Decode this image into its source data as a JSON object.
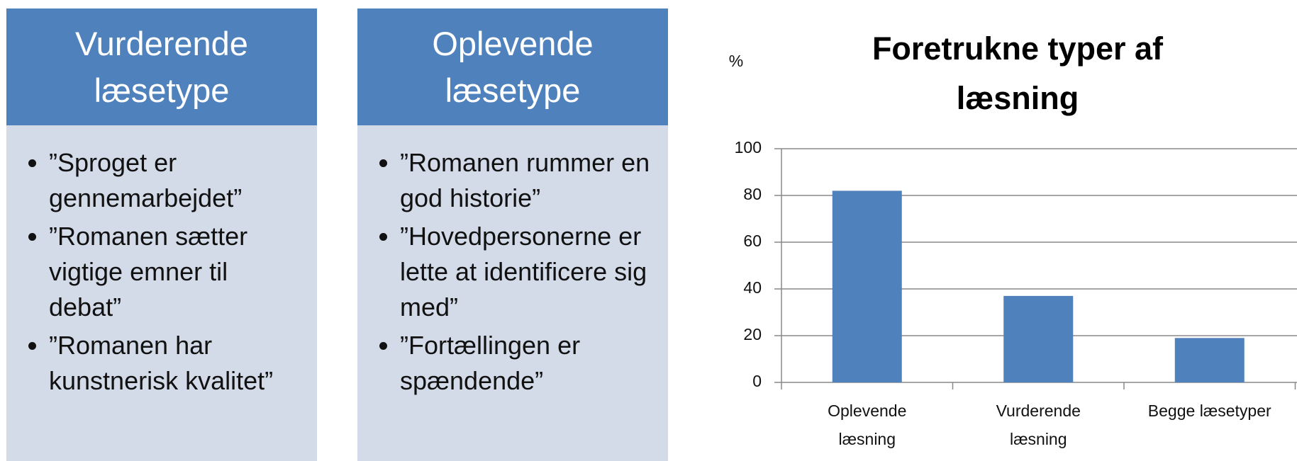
{
  "panels": [
    {
      "title": "Vurderende læsetype",
      "items": [
        "”Sproget er gennemarbejdet”",
        "”Romanen sætter vigtige emner til debat”",
        "”Romanen har kunstnerisk kvalitet”"
      ]
    },
    {
      "title": "Oplevende læsetype",
      "items": [
        "”Romanen rummer en god historie”",
        "”Hovedpersonerne er lette at identificere sig med”",
        "”Fortællingen er spændende”"
      ]
    }
  ],
  "chart_data": {
    "type": "bar",
    "title": "Foretrukne typer af læsning",
    "y_label": "%",
    "categories": [
      [
        "Oplevende",
        "læsning"
      ],
      [
        "Vurderende",
        "læsning"
      ],
      [
        "Begge læsetyper"
      ]
    ],
    "values": [
      82,
      37,
      19
    ],
    "color": "#4f81bd",
    "ylim": [
      0,
      100
    ],
    "yticks": [
      0,
      20,
      40,
      60,
      80,
      100
    ],
    "grid": true
  }
}
